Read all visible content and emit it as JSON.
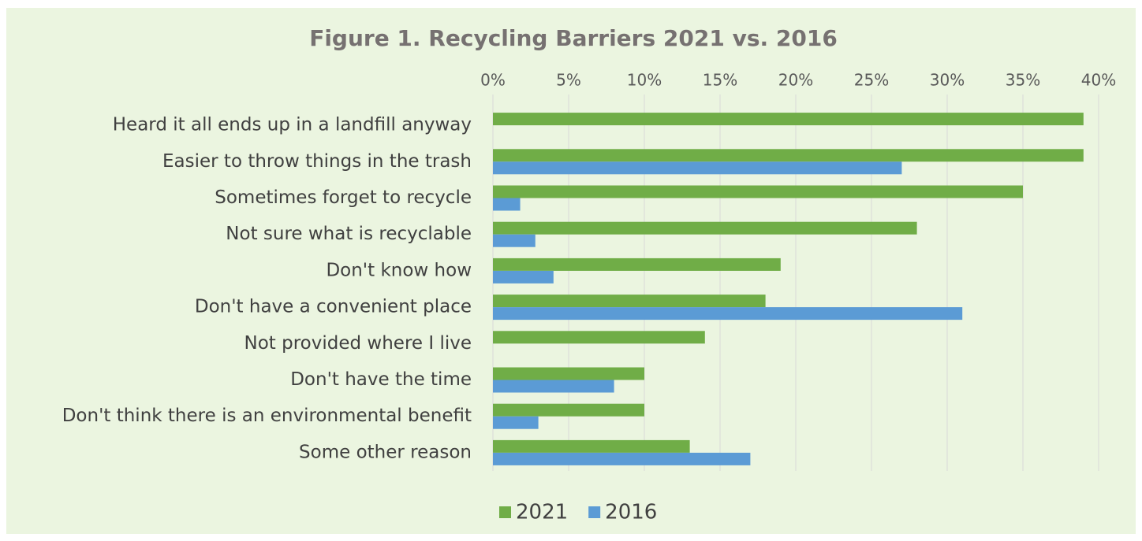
{
  "chart_data": {
    "type": "bar",
    "orientation": "horizontal",
    "title": "Figure 1. Recycling Barriers 2021 vs. 2016",
    "categories": [
      "Heard it all ends up in a landfill anyway",
      "Easier to throw things in the trash",
      "Sometimes forget to recycle",
      "Not sure what is recyclable",
      "Don't know how",
      "Don't have a convenient place",
      "Not provided where I live",
      "Don't have the time",
      "Don't think there is an environmental benefit",
      "Some other reason"
    ],
    "series": [
      {
        "name": "2021",
        "color": "#70ad47",
        "values": [
          39,
          39,
          35,
          28,
          19,
          18,
          14,
          10,
          10,
          13
        ]
      },
      {
        "name": "2016",
        "color": "#5b9bd5",
        "values": [
          null,
          27,
          1.8,
          2.8,
          4,
          31,
          null,
          8,
          3,
          17
        ]
      }
    ],
    "xlim": [
      0,
      40
    ],
    "xticks": [
      {
        "value": 0,
        "label": "0%"
      },
      {
        "value": 5,
        "label": "5%"
      },
      {
        "value": 10,
        "label": "10%"
      },
      {
        "value": 15,
        "label": "15%"
      },
      {
        "value": 20,
        "label": "20%"
      },
      {
        "value": 25,
        "label": "25%"
      },
      {
        "value": 30,
        "label": "30%"
      },
      {
        "value": 35,
        "label": "35%"
      },
      {
        "value": 40,
        "label": "40%"
      }
    ],
    "grid": true,
    "legend": "bottom"
  }
}
